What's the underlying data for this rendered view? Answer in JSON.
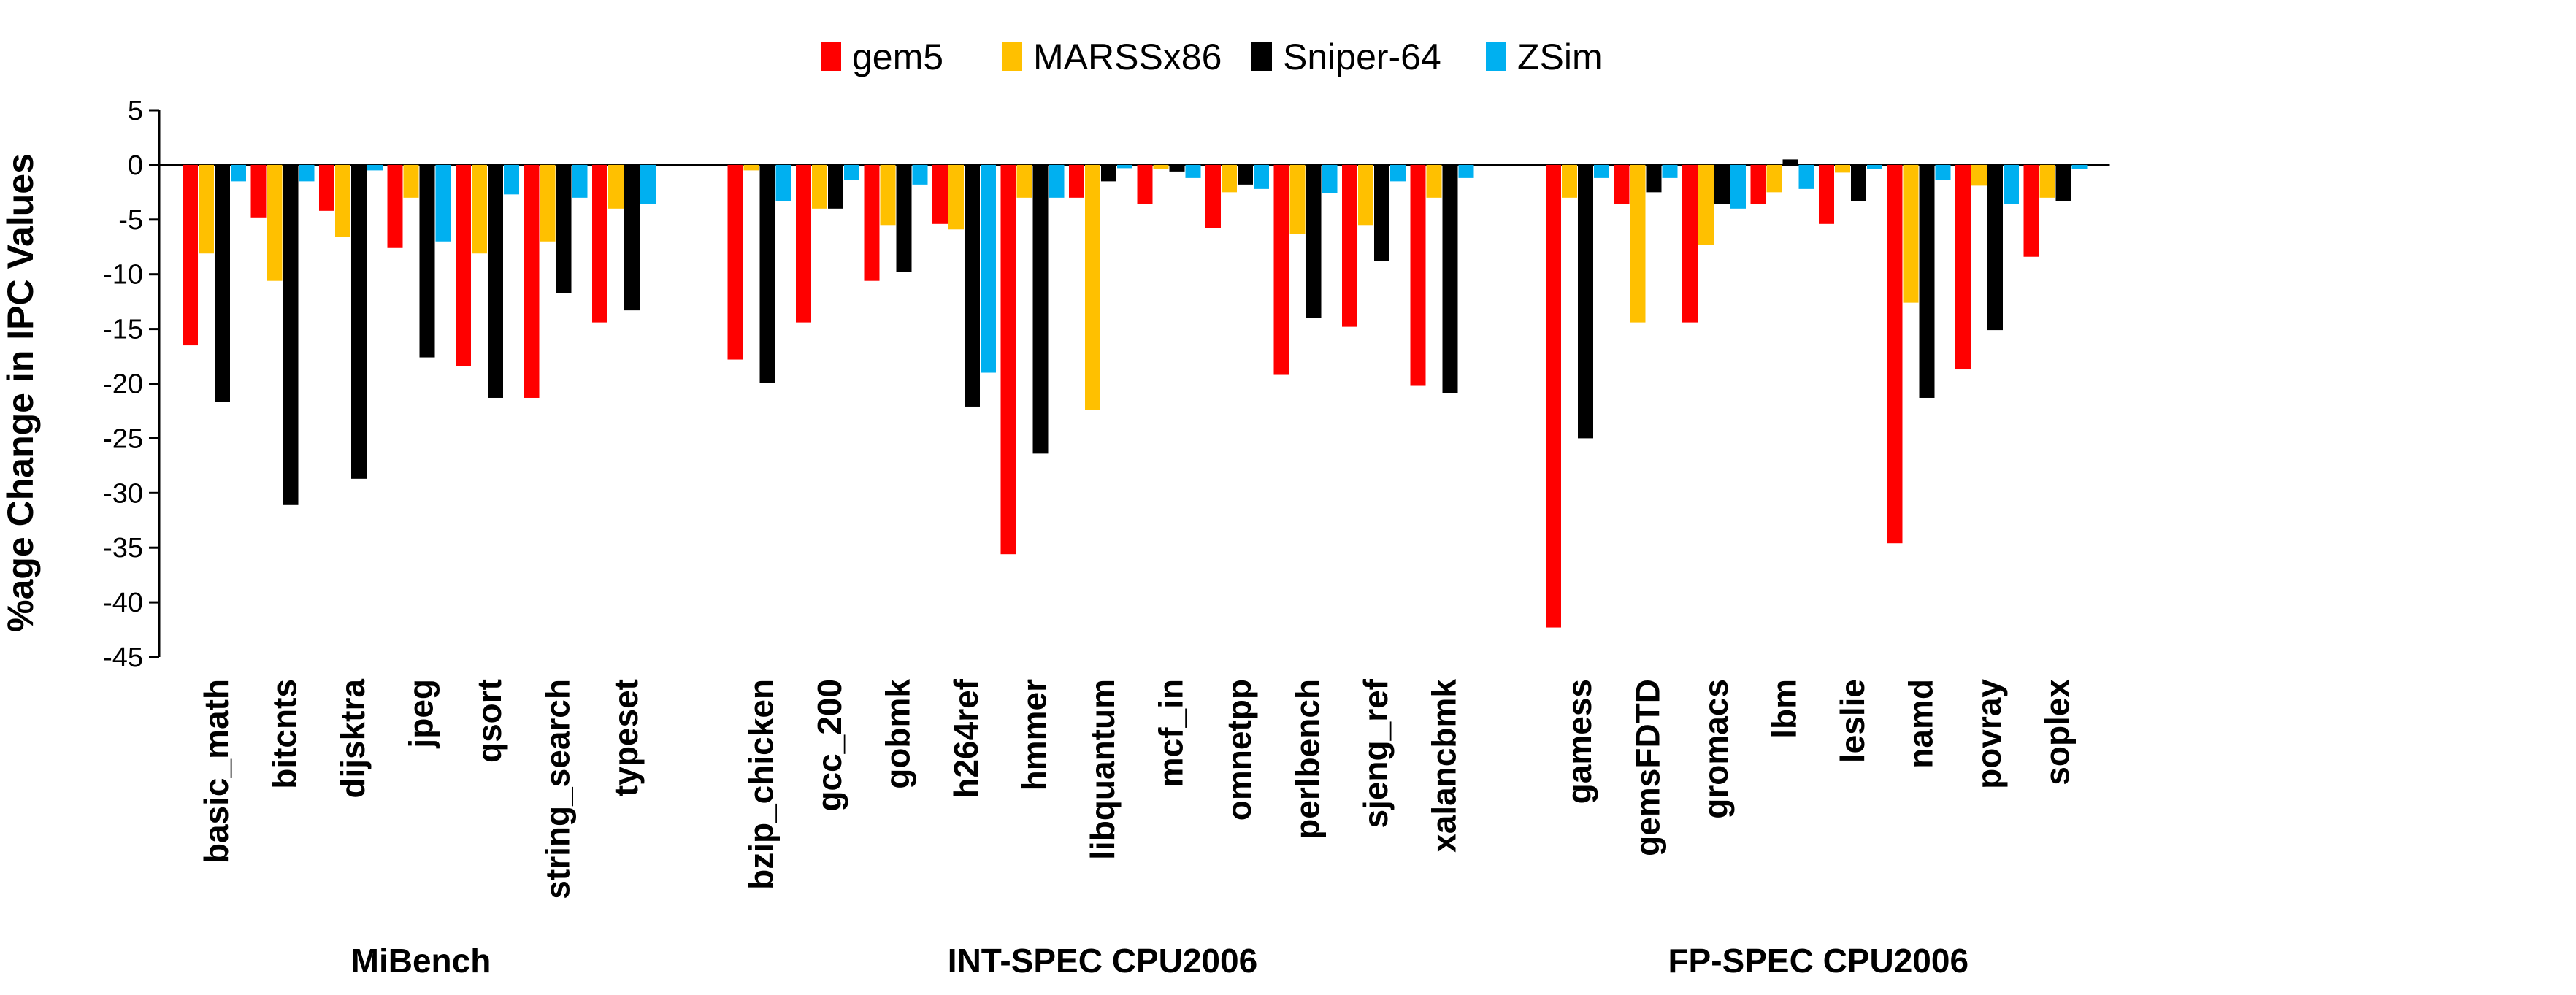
{
  "chart_data": {
    "type": "bar",
    "title": "",
    "ylabel": "%age Change in IPC Values",
    "xlabel": "",
    "ylim": [
      -45,
      5
    ],
    "yticks": [
      5,
      0,
      -5,
      -10,
      -15,
      -20,
      -25,
      -30,
      -35,
      -40,
      -45
    ],
    "grid": false,
    "legend_placement": "top-center",
    "groups": [
      {
        "name": "MiBench",
        "categories": [
          "basic_math",
          "bitcnts",
          "dijsktra",
          "jpeg",
          "qsort",
          "string_search",
          "typeset"
        ]
      },
      {
        "name": "INT-SPEC  CPU2006",
        "categories": [
          "bzip_chicken",
          "gcc_200",
          "gobmk",
          "h264ref",
          "hmmer",
          "libquantum",
          "mcf_in",
          "omnetpp",
          "perlbench",
          "sjeng_ref",
          "xalancbmk"
        ]
      },
      {
        "name": "FP-SPEC CPU2006",
        "categories": [
          "gamess",
          "gemsFDTD",
          "gromacs",
          "lbm",
          "leslie",
          "namd",
          "povray",
          "soplex"
        ]
      }
    ],
    "series": [
      {
        "name": "gem5",
        "color": "#ff0000",
        "values": [
          -16.5,
          -4.8,
          -4.2,
          -7.6,
          -18.4,
          -21.3,
          -14.4,
          -17.8,
          -14.4,
          -10.6,
          -5.4,
          -35.6,
          -3.0,
          -3.6,
          -5.8,
          -19.2,
          -14.8,
          -20.2,
          -42.3,
          -3.6,
          -14.4,
          -3.6,
          -5.4,
          -34.6,
          -18.7,
          -8.4
        ]
      },
      {
        "name": "MARSSx86",
        "color": "#ffc000",
        "values": [
          -8.1,
          -10.6,
          -6.6,
          -3.0,
          -8.1,
          -7.0,
          -4.0,
          -0.5,
          -4.0,
          -5.5,
          -5.9,
          -3.0,
          -22.4,
          -0.4,
          -2.5,
          -6.3,
          -5.5,
          -3.0,
          -3.0,
          -14.4,
          -7.3,
          -2.5,
          -0.7,
          -12.6,
          -1.9,
          -3.0
        ]
      },
      {
        "name": "Sniper-64",
        "color": "#000000",
        "values": [
          -21.7,
          -31.1,
          -28.7,
          -17.6,
          -21.3,
          -11.7,
          -13.3,
          -19.9,
          -4.0,
          -9.8,
          -22.1,
          -26.4,
          -1.5,
          -0.6,
          -1.8,
          -14.0,
          -8.8,
          -20.9,
          -25.0,
          -2.5,
          -3.6,
          0.5,
          -3.3,
          -21.3,
          -15.1,
          -3.3
        ]
      },
      {
        "name": "ZSim",
        "color": "#00b0f0",
        "values": [
          -1.5,
          -1.5,
          -0.5,
          -7.0,
          -2.7,
          -3.0,
          -3.6,
          -3.3,
          -1.4,
          -1.8,
          -19.0,
          -3.0,
          -0.3,
          -1.2,
          -2.2,
          -2.6,
          -1.5,
          -1.2,
          -1.2,
          -1.2,
          -4.0,
          -2.2,
          -0.4,
          -1.4,
          -3.6,
          -0.4
        ]
      }
    ]
  }
}
